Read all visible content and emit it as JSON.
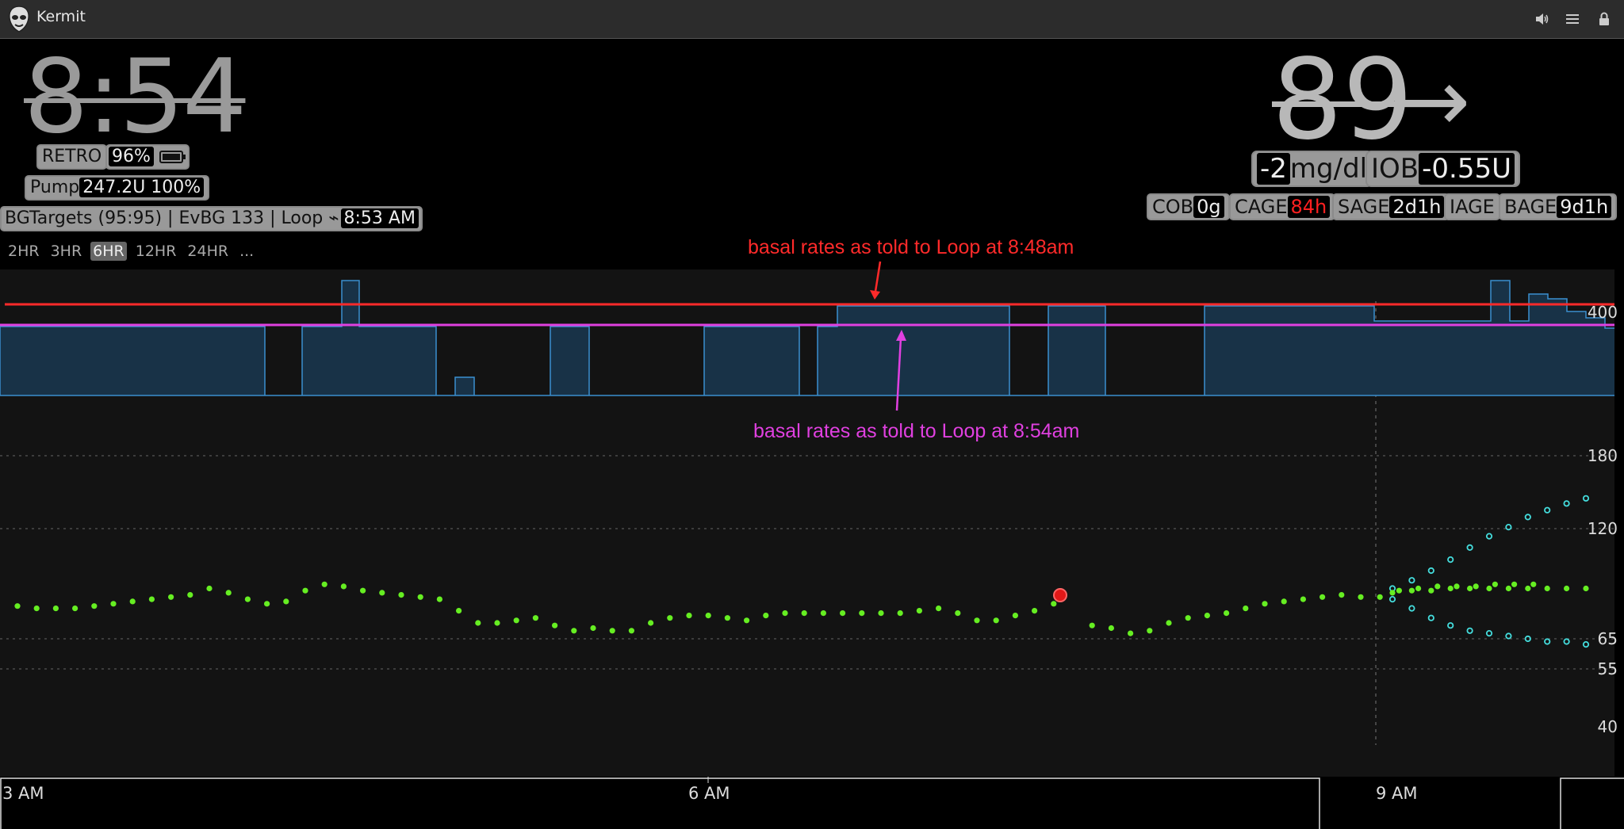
{
  "window": {
    "title": "Kermit"
  },
  "header": {
    "clock": "8:54",
    "retro_label": "RETRO",
    "battery": "96%",
    "pump_label": "Pump",
    "pump_value": "247.2U 100%",
    "loop_status": "BGTargets (95:95) | EvBG 133 | Loop ⌁",
    "loop_time": "8:53 AM"
  },
  "range_buttons": [
    "2HR",
    "3HR",
    "6HR",
    "12HR",
    "24HR",
    "..."
  ],
  "active_range": "6HR",
  "bg": {
    "value": "89",
    "direction": "→",
    "delta": "-2",
    "units": "mg/dl",
    "iob_label": "IOB",
    "iob_value": "-0.55U"
  },
  "pills": {
    "cob_label": "COB",
    "cob_value": "0g",
    "cage_label": "CAGE",
    "cage_value": "84h",
    "sage_label": "SAGE",
    "sage_value": "2d1h",
    "iage_label": "IAGE",
    "bage_label": "BAGE",
    "bage_value": "9d1h"
  },
  "annotations": {
    "red": "basal rates as told to Loop at 8:48am",
    "magenta": "basal rates as told to Loop at 8:54am"
  },
  "colors": {
    "red_annotation": "#ff2a2a",
    "magenta_annotation": "#e040e0",
    "basal_fill": "#183247",
    "basal_stroke": "#3a8fd0",
    "bg_dot": "#66ee22",
    "prediction": "#44dddd",
    "cage_value": "#ff2020"
  },
  "chart_data": {
    "type": "scatter",
    "y_axis_labels": [
      "400",
      "180",
      "120",
      "65",
      "55",
      "40"
    ],
    "x_axis_labels": [
      "3 AM",
      "6 AM",
      "9 AM"
    ],
    "x_range": [
      "2:55 AM",
      "9:50 AM"
    ],
    "y_scale": "log",
    "series": [
      {
        "values": [
          [
            0,
            78
          ],
          [
            1,
            77
          ],
          [
            2,
            77
          ],
          [
            3,
            77
          ],
          [
            4,
            78
          ],
          [
            5,
            79
          ],
          [
            6,
            80
          ],
          [
            7,
            81
          ],
          [
            8,
            82
          ],
          [
            9,
            83
          ],
          [
            10,
            86
          ],
          [
            11,
            84
          ],
          [
            12,
            81
          ],
          [
            13,
            79
          ],
          [
            14,
            80
          ],
          [
            15,
            85
          ],
          [
            16,
            88
          ],
          [
            17,
            87
          ],
          [
            18,
            85
          ],
          [
            19,
            84
          ],
          [
            20,
            83
          ],
          [
            21,
            82
          ],
          [
            22,
            81
          ],
          [
            23,
            76
          ],
          [
            24,
            71
          ],
          [
            25,
            71
          ],
          [
            26,
            72
          ],
          [
            27,
            73
          ],
          [
            28,
            70
          ],
          [
            29,
            68
          ],
          [
            30,
            69
          ],
          [
            31,
            68
          ],
          [
            32,
            68
          ],
          [
            33,
            71
          ],
          [
            34,
            73
          ],
          [
            35,
            74
          ],
          [
            36,
            74
          ],
          [
            37,
            73
          ],
          [
            38,
            72
          ],
          [
            39,
            74
          ],
          [
            40,
            75
          ],
          [
            41,
            75
          ],
          [
            42,
            75
          ],
          [
            43,
            75
          ],
          [
            44,
            75
          ],
          [
            45,
            75
          ],
          [
            46,
            75
          ],
          [
            47,
            76
          ],
          [
            48,
            77
          ],
          [
            49,
            75
          ],
          [
            50,
            72
          ],
          [
            51,
            72
          ],
          [
            52,
            74
          ],
          [
            53,
            76
          ],
          [
            54,
            79
          ],
          [
            55,
            73
          ],
          [
            56,
            70
          ],
          [
            57,
            69
          ],
          [
            58,
            67
          ],
          [
            59,
            68
          ],
          [
            60,
            71
          ],
          [
            61,
            73
          ],
          [
            62,
            74
          ],
          [
            63,
            75
          ],
          [
            64,
            77
          ],
          [
            65,
            79
          ],
          [
            66,
            80
          ],
          [
            67,
            81
          ],
          [
            68,
            82
          ],
          [
            69,
            83
          ],
          [
            70,
            82
          ],
          [
            71,
            82
          ],
          [
            72,
            85
          ],
          [
            73,
            86
          ],
          [
            74,
            87
          ],
          [
            75,
            87
          ],
          [
            76,
            87
          ],
          [
            77,
            88
          ],
          [
            78,
            88
          ],
          [
            79,
            88
          ]
        ]
      }
    ]
  }
}
